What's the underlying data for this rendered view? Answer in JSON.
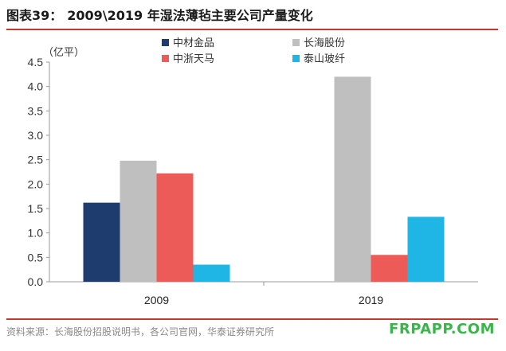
{
  "header": {
    "label": "图表39：",
    "title": "2009\\2019 年湿法薄毡主要公司产量变化"
  },
  "footer": {
    "source": "资料来源：长海股份招股说明书，各公司官网，华泰证券研究所",
    "watermark": "FRPAPP.COM"
  },
  "colors": {
    "accent_rule": "#c0392b",
    "watermark": "#39b54a"
  },
  "chart_data": {
    "type": "bar",
    "categories": [
      "2009",
      "2019"
    ],
    "series": [
      {
        "name": "中材金品",
        "values": [
          1.62,
          null
        ],
        "color": "#1f3c6e"
      },
      {
        "name": "长海股份",
        "values": [
          2.48,
          4.2
        ],
        "color": "#bfbfbf"
      },
      {
        "name": "中浙天马",
        "values": [
          2.22,
          0.55
        ],
        "color": "#ec5b57"
      },
      {
        "name": "泰山玻纤",
        "values": [
          0.35,
          1.33
        ],
        "color": "#1fb6e6"
      }
    ],
    "ylabel": "（亿平）",
    "ylim": [
      0,
      4.5
    ],
    "yticks": [
      "0.0",
      "0.5",
      "1.0",
      "1.5",
      "2.0",
      "2.5",
      "3.0",
      "3.5",
      "4.0",
      "4.5"
    ],
    "grid": false,
    "legend_position": "top-right"
  }
}
